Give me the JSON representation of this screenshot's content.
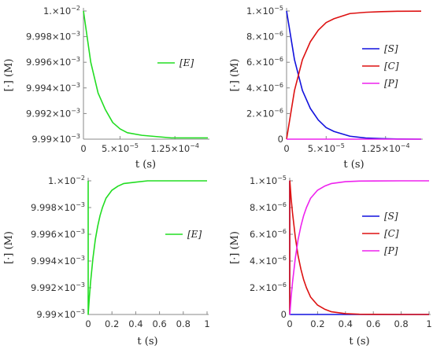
{
  "chart_data": [
    {
      "type": "line",
      "xlabel": "t (s)",
      "ylabel": "[·] (M)",
      "xlim": [
        0,
        0.00017
      ],
      "ylim": [
        0.00999,
        0.01
      ],
      "xticks": [
        {
          "value": 0,
          "base": "0",
          "exp": ""
        },
        {
          "value": 5e-05,
          "base": "5.×10",
          "exp": "−5"
        },
        {
          "value": 0.000125,
          "base": "1.25×10",
          "exp": "−4"
        }
      ],
      "yticks": [
        {
          "value": 0.00999,
          "base": "9.99×10",
          "exp": "−3"
        },
        {
          "value": 0.009992,
          "base": "9.992×10",
          "exp": "−3"
        },
        {
          "value": 0.009994,
          "base": "9.994×10",
          "exp": "−3"
        },
        {
          "value": 0.009996,
          "base": "9.996×10",
          "exp": "−3"
        },
        {
          "value": 0.009998,
          "base": "9.998×10",
          "exp": "−3"
        },
        {
          "value": 0.01,
          "base": "1.×10",
          "exp": "−2"
        }
      ],
      "legend_position": "right",
      "series": [
        {
          "name": "[E]",
          "color": "#22dd22",
          "x": [
            0,
            1e-05,
            2e-05,
            3e-05,
            4e-05,
            5e-05,
            6e-05,
            8e-05,
            0.0001,
            0.00012,
            0.00014,
            0.00017
          ],
          "y": [
            0.01,
            0.009996,
            0.0099936,
            0.0099923,
            0.0099913,
            0.0099908,
            0.0099905,
            0.0099903,
            0.0099902,
            0.0099901,
            0.0099901,
            0.0099901
          ]
        }
      ]
    },
    {
      "type": "line",
      "xlabel": "t (s)",
      "ylabel": "[·] (M)",
      "xlim": [
        0,
        0.00017
      ],
      "ylim": [
        0,
        1e-05
      ],
      "xticks": [
        {
          "value": 0,
          "base": "0",
          "exp": ""
        },
        {
          "value": 5e-05,
          "base": "5.×10",
          "exp": "−5"
        },
        {
          "value": 0.000125,
          "base": "1.25×10",
          "exp": "−4"
        }
      ],
      "yticks": [
        {
          "value": 0,
          "base": "0",
          "exp": ""
        },
        {
          "value": 2e-06,
          "base": "2.×10",
          "exp": "−6"
        },
        {
          "value": 4e-06,
          "base": "4.×10",
          "exp": "−6"
        },
        {
          "value": 6e-06,
          "base": "6.×10",
          "exp": "−6"
        },
        {
          "value": 8e-06,
          "base": "8.×10",
          "exp": "−6"
        },
        {
          "value": 1e-05,
          "base": "1.×10",
          "exp": "−5"
        }
      ],
      "legend_position": "right",
      "series": [
        {
          "name": "[S]",
          "color": "#1111dd",
          "x": [
            0,
            1e-05,
            2e-05,
            3e-05,
            4e-05,
            5e-05,
            6e-05,
            8e-05,
            0.0001,
            0.00012,
            0.00014,
            0.00017
          ],
          "y": [
            1e-05,
            6.2e-06,
            3.8e-06,
            2.4e-06,
            1.5e-06,
            9e-07,
            6e-07,
            2.3e-07,
            9e-08,
            4e-08,
            1e-08,
            0
          ]
        },
        {
          "name": "[C]",
          "color": "#dd1111",
          "x": [
            0,
            1e-05,
            2e-05,
            3e-05,
            4e-05,
            5e-05,
            6e-05,
            8e-05,
            0.0001,
            0.00012,
            0.00014,
            0.00017
          ],
          "y": [
            0,
            3.8e-06,
            6.2e-06,
            7.6e-06,
            8.5e-06,
            9.1e-06,
            9.4e-06,
            9.8e-06,
            9.9e-06,
            9.95e-06,
            9.98e-06,
            9.99e-06
          ]
        },
        {
          "name": "[P]",
          "color": "#ee22ee",
          "x": [
            0,
            0.00017
          ],
          "y": [
            0,
            0
          ]
        }
      ]
    },
    {
      "type": "line",
      "xlabel": "t (s)",
      "ylabel": "[·] (M)",
      "xlim": [
        0,
        1
      ],
      "ylim": [
        0.00999,
        0.01
      ],
      "xticks": [
        {
          "value": 0,
          "base": "0",
          "exp": ""
        },
        {
          "value": 0.2,
          "base": "0.2",
          "exp": ""
        },
        {
          "value": 0.4,
          "base": "0.4",
          "exp": ""
        },
        {
          "value": 0.6,
          "base": "0.6",
          "exp": ""
        },
        {
          "value": 0.8,
          "base": "0.8",
          "exp": ""
        },
        {
          "value": 1,
          "base": "1",
          "exp": ""
        }
      ],
      "yticks": [
        {
          "value": 0.00999,
          "base": "9.99×10",
          "exp": "−3"
        },
        {
          "value": 0.009992,
          "base": "9.992×10",
          "exp": "−3"
        },
        {
          "value": 0.009994,
          "base": "9.994×10",
          "exp": "−3"
        },
        {
          "value": 0.009996,
          "base": "9.996×10",
          "exp": "−3"
        },
        {
          "value": 0.009998,
          "base": "9.998×10",
          "exp": "−3"
        },
        {
          "value": 0.01,
          "base": "1.×10",
          "exp": "−2"
        }
      ],
      "legend_position": "right",
      "series": [
        {
          "name": "[E]",
          "color": "#22dd22",
          "x": [
            0,
            0.0001,
            0.01,
            0.02,
            0.04,
            0.06,
            0.08,
            0.1,
            0.12,
            0.15,
            0.2,
            0.25,
            0.3,
            0.4,
            0.5,
            0.6,
            0.8,
            1
          ],
          "y": [
            0.01,
            0.00999,
            0.0099913,
            0.0099924,
            0.0099942,
            0.0099956,
            0.0099966,
            0.0099974,
            0.009998,
            0.0099987,
            0.0099993,
            0.0099996,
            0.0099998,
            0.0099999,
            0.01,
            0.01,
            0.01,
            0.01
          ]
        }
      ]
    },
    {
      "type": "line",
      "xlabel": "t (s)",
      "ylabel": "[·] (M)",
      "xlim": [
        0,
        1
      ],
      "ylim": [
        0,
        1e-05
      ],
      "xticks": [
        {
          "value": 0,
          "base": "0",
          "exp": ""
        },
        {
          "value": 0.2,
          "base": "0.2",
          "exp": ""
        },
        {
          "value": 0.4,
          "base": "0.4",
          "exp": ""
        },
        {
          "value": 0.6,
          "base": "0.6",
          "exp": ""
        },
        {
          "value": 0.8,
          "base": "0.8",
          "exp": ""
        },
        {
          "value": 1,
          "base": "1",
          "exp": ""
        }
      ],
      "yticks": [
        {
          "value": 0,
          "base": "0",
          "exp": ""
        },
        {
          "value": 2e-06,
          "base": "2.×10",
          "exp": "−6"
        },
        {
          "value": 4e-06,
          "base": "4.×10",
          "exp": "−6"
        },
        {
          "value": 6e-06,
          "base": "6.×10",
          "exp": "−6"
        },
        {
          "value": 8e-06,
          "base": "8.×10",
          "exp": "−6"
        },
        {
          "value": 1e-05,
          "base": "1.×10",
          "exp": "−5"
        }
      ],
      "legend_position": "right",
      "series": [
        {
          "name": "[S]",
          "color": "#1111dd",
          "x": [
            0,
            0.0002,
            0.001,
            1
          ],
          "y": [
            1e-05,
            1e-06,
            0,
            0
          ]
        },
        {
          "name": "[C]",
          "color": "#dd1111",
          "x": [
            0,
            0.0002,
            0.001,
            0.01,
            0.02,
            0.04,
            0.06,
            0.08,
            0.1,
            0.12,
            0.15,
            0.2,
            0.25,
            0.3,
            0.4,
            0.5,
            0.6,
            0.8,
            1
          ],
          "y": [
            0,
            9.8e-06,
            1e-05,
            8.7e-06,
            7.6e-06,
            5.8e-06,
            4.4e-06,
            3.4e-06,
            2.6e-06,
            2e-06,
            1.3e-06,
            7e-07,
            4e-07,
            2e-07,
            6e-08,
            2e-08,
            1e-08,
            0,
            0
          ]
        },
        {
          "name": "[P]",
          "color": "#ee22ee",
          "x": [
            0,
            0.001,
            0.01,
            0.02,
            0.04,
            0.06,
            0.08,
            0.1,
            0.12,
            0.15,
            0.2,
            0.25,
            0.3,
            0.4,
            0.5,
            0.6,
            0.8,
            1
          ],
          "y": [
            0,
            0,
            1.3e-06,
            2.4e-06,
            4.2e-06,
            5.6e-06,
            6.6e-06,
            7.4e-06,
            8e-06,
            8.7e-06,
            9.3e-06,
            9.6e-06,
            9.8e-06,
            9.94e-06,
            9.98e-06,
            9.99e-06,
            1e-05,
            1e-05
          ]
        }
      ]
    }
  ]
}
